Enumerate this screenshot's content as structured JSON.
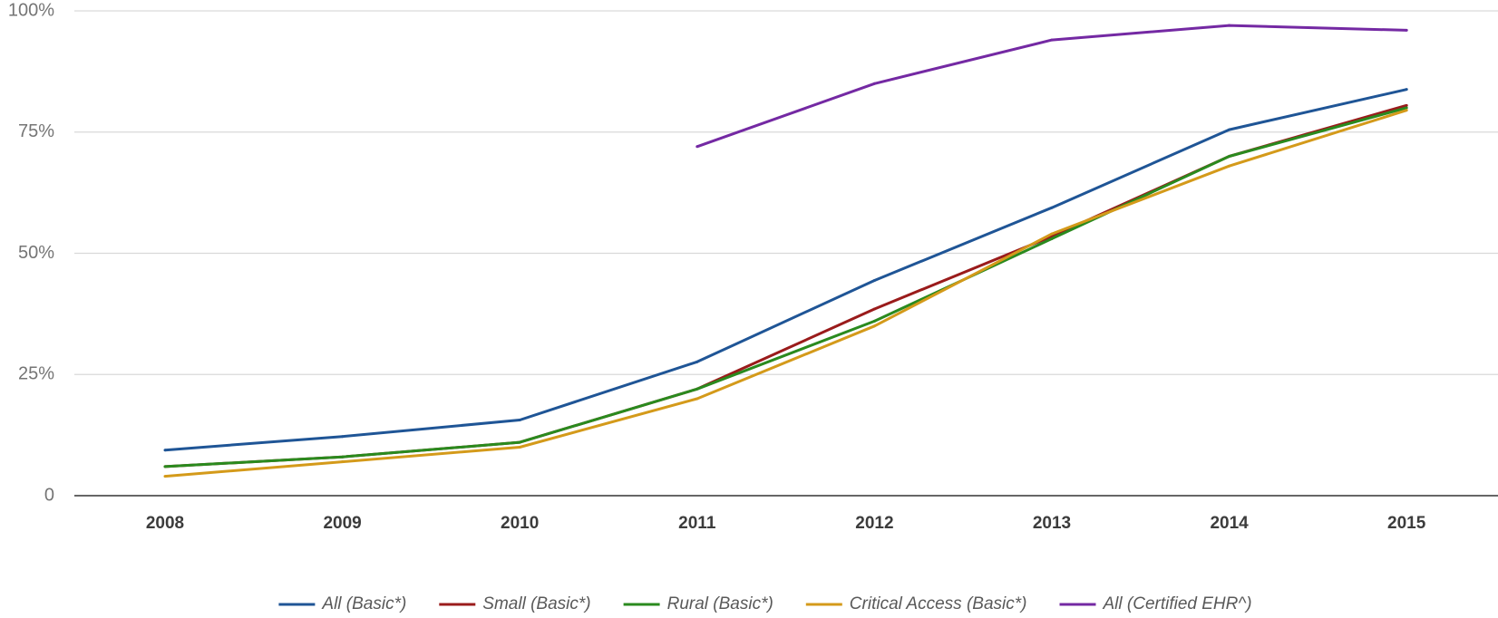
{
  "chart_data": {
    "type": "line",
    "title": "",
    "xlabel": "",
    "ylabel": "",
    "categories": [
      "2008",
      "2009",
      "2010",
      "2011",
      "2012",
      "2013",
      "2014",
      "2015"
    ],
    "ylim": [
      0,
      100
    ],
    "y_ticks": [
      0,
      25,
      50,
      75,
      100
    ],
    "y_tick_labels": [
      "0",
      "25%",
      "50%",
      "75%",
      "100%"
    ],
    "grid": true,
    "legend_position": "bottom",
    "series": [
      {
        "name": "All (Basic*)",
        "color": "#1f5596",
        "values": [
          9.4,
          12.2,
          15.6,
          27.6,
          44.4,
          59.4,
          75.5,
          83.8
        ]
      },
      {
        "name": "Small (Basic*)",
        "color": "#9a1b1b",
        "values": [
          6,
          8,
          11,
          22,
          38.5,
          53.5,
          70,
          80.5
        ]
      },
      {
        "name": "Rural (Basic*)",
        "color": "#2a8a1e",
        "values": [
          6,
          8,
          11,
          22,
          36,
          53,
          70,
          80
        ]
      },
      {
        "name": "Critical Access (Basic*)",
        "color": "#d49a1a",
        "values": [
          4,
          7,
          10,
          20,
          35,
          54,
          68,
          79.5
        ]
      },
      {
        "name": "All (Certified EHR^)",
        "color": "#7429a3",
        "values": [
          null,
          null,
          null,
          72,
          85,
          94,
          97,
          96
        ]
      }
    ]
  }
}
